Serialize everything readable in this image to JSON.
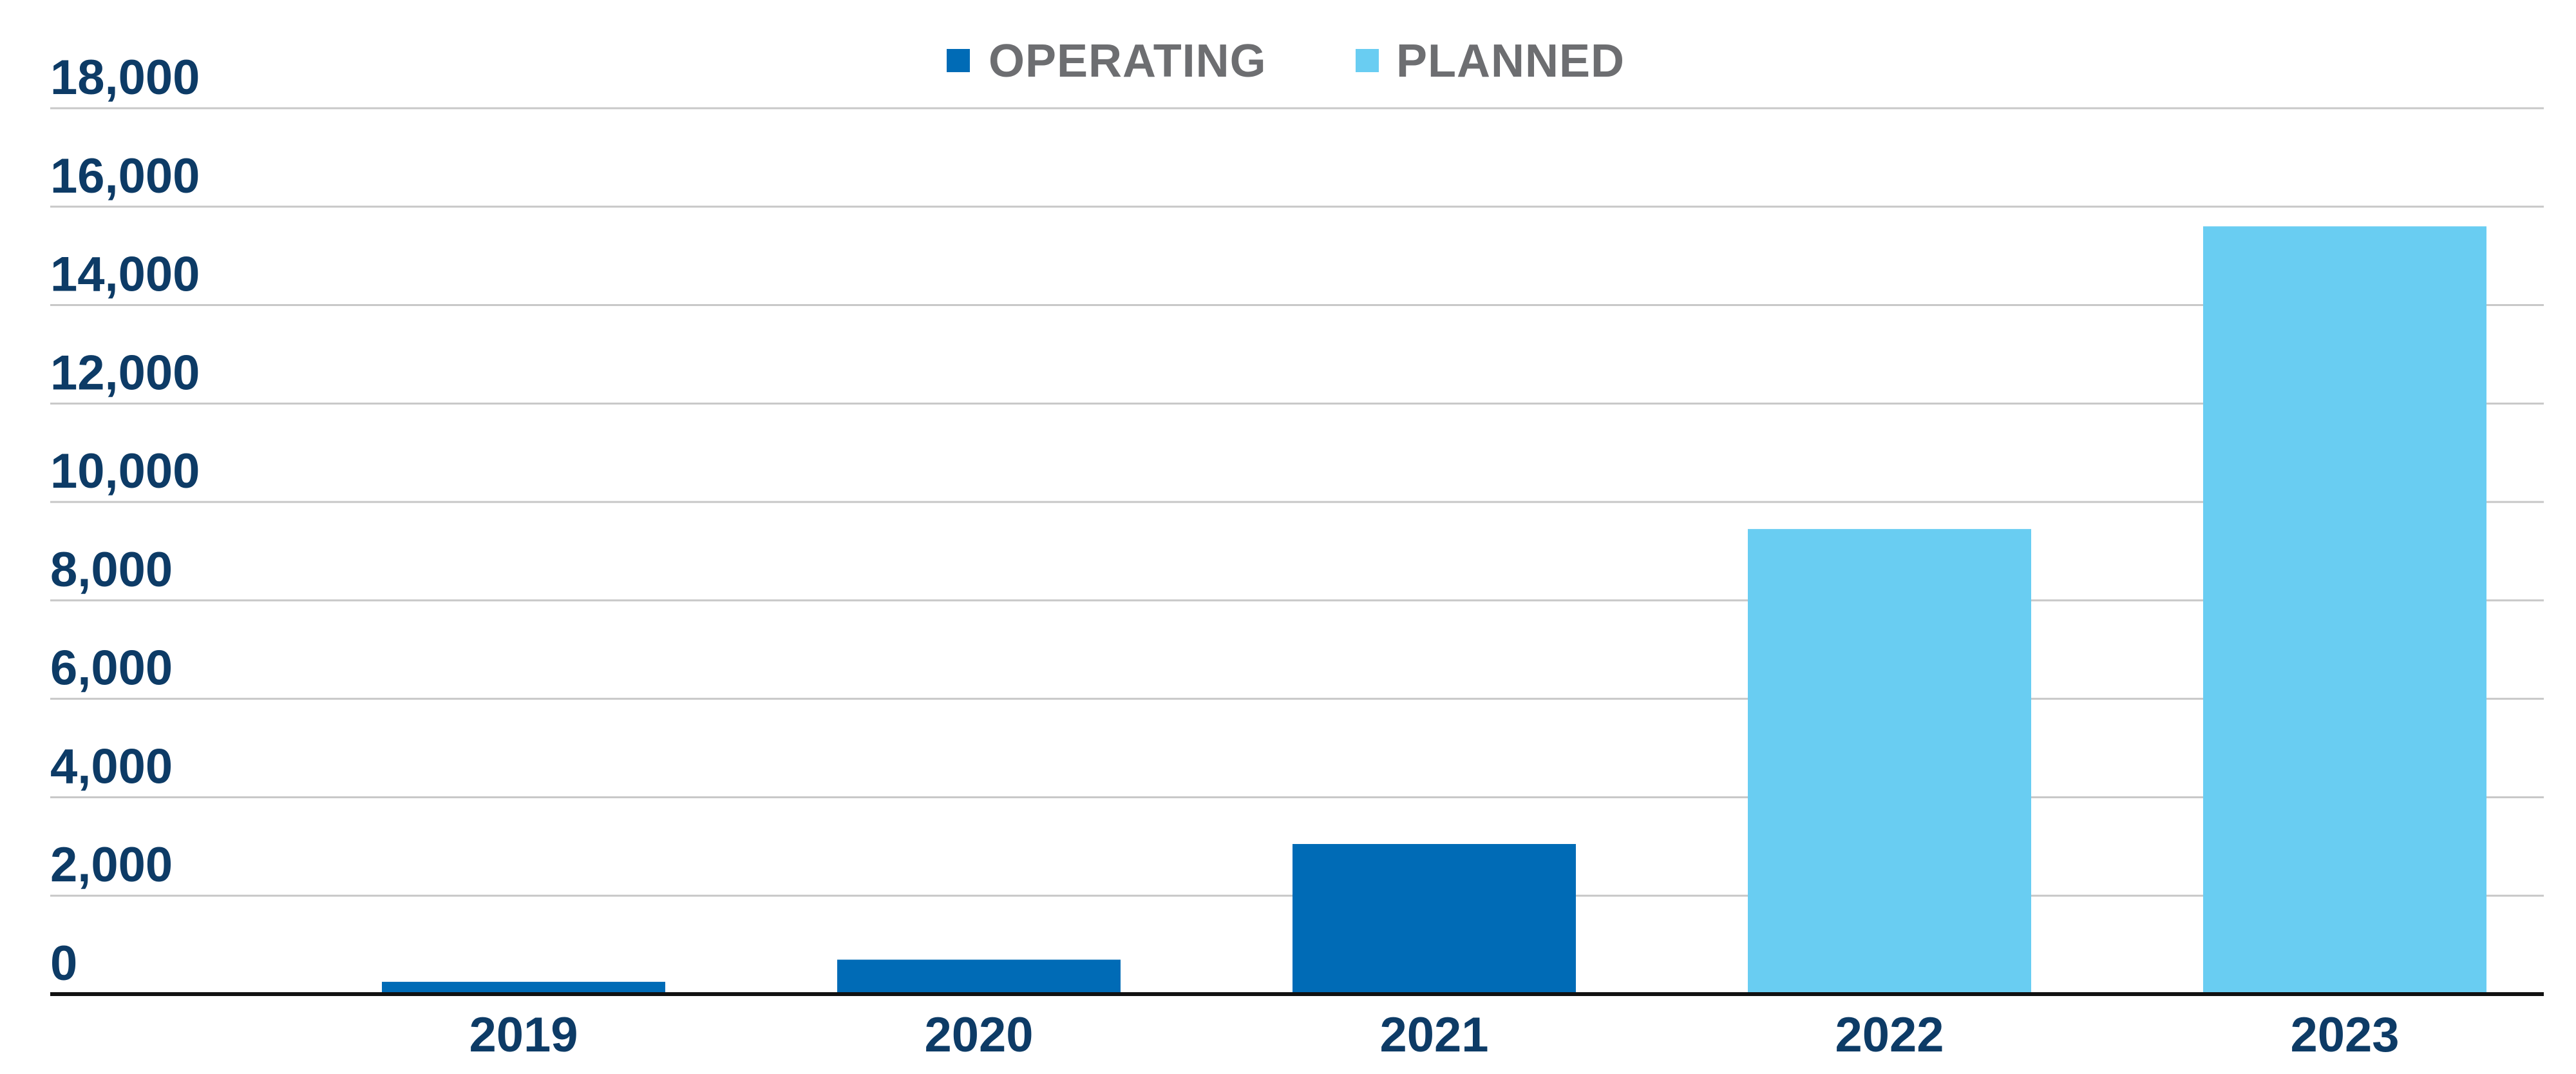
{
  "chart_data": {
    "type": "bar",
    "categories": [
      "2019",
      "2020",
      "2021",
      "2022",
      "2023"
    ],
    "series": [
      {
        "name": "OPERATING",
        "color": "#006bb6",
        "values": [
          250,
          700,
          3050,
          null,
          null
        ]
      },
      {
        "name": "PLANNED",
        "color": "#69cdf2",
        "values": [
          null,
          null,
          null,
          9450,
          15600
        ]
      }
    ],
    "title": "",
    "xlabel": "",
    "ylabel": "",
    "ylim": [
      0,
      18000
    ],
    "yticks": [
      0,
      2000,
      4000,
      6000,
      8000,
      10000,
      12000,
      14000,
      16000,
      18000
    ],
    "ytick_labels": [
      "0",
      "2,000",
      "4,000",
      "6,000",
      "8,000",
      "10,000",
      "12,000",
      "14,000",
      "16,000",
      "18,000"
    ],
    "grid": true,
    "legend_position": "top-center",
    "colors": {
      "text": "#0d3b66",
      "legend_text": "#6d6e71",
      "grid": "#c8c8c8",
      "axis": "#111111"
    }
  }
}
